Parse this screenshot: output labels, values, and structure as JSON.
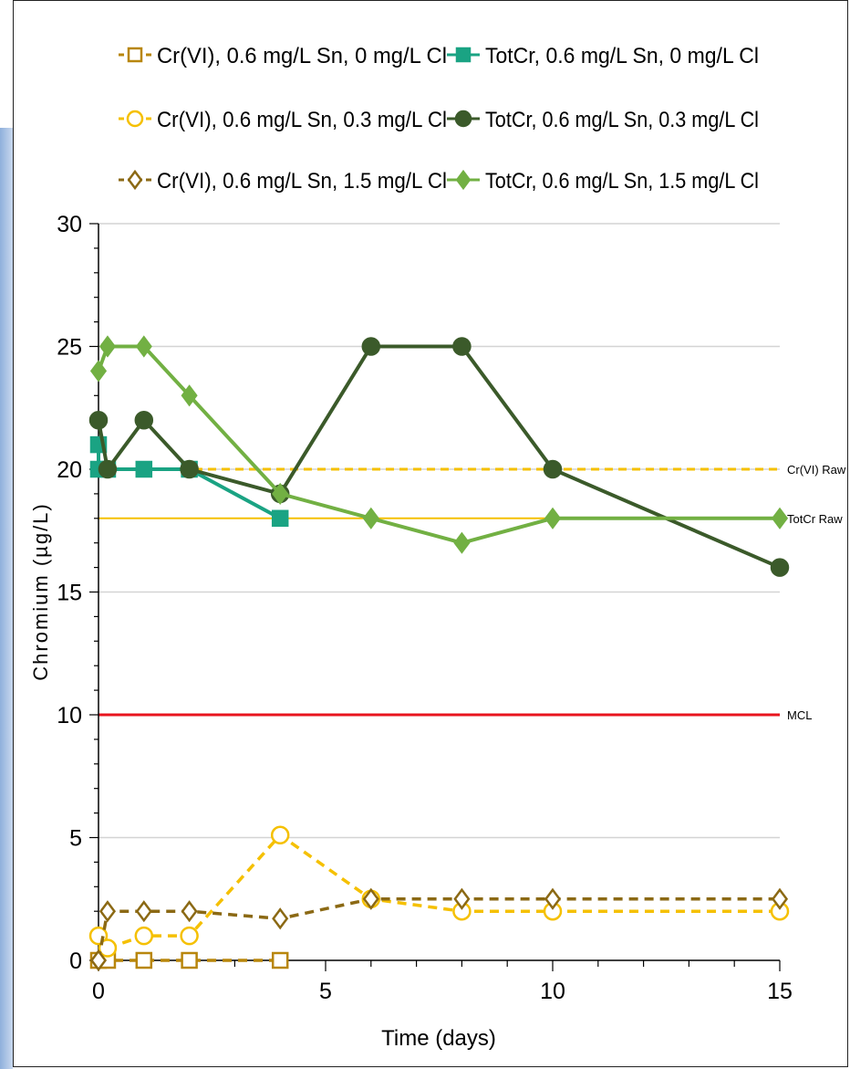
{
  "chart_data": {
    "type": "line",
    "title": "",
    "xlabel": "Time (days)",
    "ylabel": "Chromium (µg/L)",
    "xlim": [
      0,
      15
    ],
    "ylim": [
      0,
      30
    ],
    "xticks": [
      0,
      5,
      10,
      15
    ],
    "yticks": [
      0,
      5,
      10,
      15,
      20,
      25,
      30
    ],
    "grid": "horizontal",
    "legend_position": "top",
    "series": [
      {
        "name": "Cr(VI), 0.6 mg/L Sn, 0 mg/L Cl",
        "color": "#b8860b",
        "marker": "square-open",
        "line": "dashed",
        "points": [
          [
            0,
            0
          ],
          [
            0.2,
            0
          ],
          [
            1,
            0
          ],
          [
            2,
            0
          ],
          [
            4,
            0
          ]
        ]
      },
      {
        "name": "TotCr, 0.6 mg/L Sn, 0 mg/L Cl",
        "color": "#1aa383",
        "marker": "square-filled",
        "line": "solid",
        "points": [
          [
            0,
            21
          ],
          [
            0,
            20
          ],
          [
            0.2,
            20
          ],
          [
            1,
            20
          ],
          [
            2,
            20
          ],
          [
            4,
            18
          ]
        ]
      },
      {
        "name": "Cr(VI), 0.6 mg/L Sn, 0.3 mg/L Cl",
        "color": "#f5c000",
        "marker": "circle-open",
        "line": "dashed",
        "points": [
          [
            0,
            1
          ],
          [
            0.2,
            0.5
          ],
          [
            1,
            1
          ],
          [
            2,
            1
          ],
          [
            4,
            5.1
          ],
          [
            6,
            2.5
          ],
          [
            8,
            2
          ],
          [
            10,
            2
          ],
          [
            15,
            2
          ]
        ]
      },
      {
        "name": "TotCr, 0.6 mg/L Sn, 0.3 mg/L Cl",
        "color": "#3b5a2a",
        "marker": "circle-filled",
        "line": "solid",
        "points": [
          [
            0,
            22
          ],
          [
            0.2,
            20
          ],
          [
            1,
            22
          ],
          [
            2,
            20
          ],
          [
            4,
            19
          ],
          [
            6,
            25
          ],
          [
            8,
            25
          ],
          [
            10,
            20
          ],
          [
            15,
            16
          ]
        ]
      },
      {
        "name": "Cr(VI), 0.6 mg/L Sn, 1.5 mg/L Cl",
        "color": "#8b6914",
        "marker": "diamond-open",
        "line": "dashed",
        "points": [
          [
            0,
            0
          ],
          [
            0.2,
            2
          ],
          [
            1,
            2
          ],
          [
            2,
            2
          ],
          [
            4,
            1.7
          ],
          [
            6,
            2.5
          ],
          [
            8,
            2.5
          ],
          [
            10,
            2.5
          ],
          [
            15,
            2.5
          ]
        ]
      },
      {
        "name": "TotCr, 0.6 mg/L Sn, 1.5 mg/L Cl",
        "color": "#72b043",
        "marker": "diamond-filled",
        "line": "solid",
        "points": [
          [
            0,
            24
          ],
          [
            0.2,
            25
          ],
          [
            1,
            25
          ],
          [
            2,
            23
          ],
          [
            4,
            19
          ],
          [
            6,
            18
          ],
          [
            8,
            17
          ],
          [
            10,
            18
          ],
          [
            15,
            18
          ]
        ]
      }
    ],
    "reference_lines": [
      {
        "label": "Cr(VI) Raw",
        "y": 20,
        "color": "#f5c000",
        "style": "dashed"
      },
      {
        "label": "TotCr Raw",
        "y": 18,
        "color": "#f5c000",
        "style": "solid"
      },
      {
        "label": "MCL",
        "y": 10,
        "color": "#e8141e",
        "style": "solid"
      }
    ]
  }
}
